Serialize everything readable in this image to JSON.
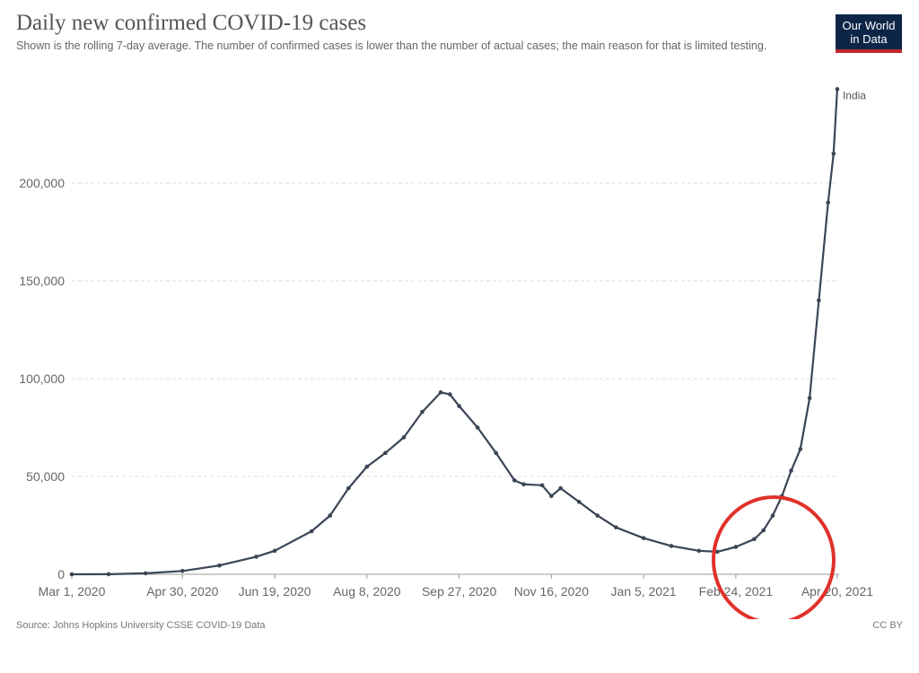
{
  "header": {
    "title": "Daily new confirmed COVID-19 cases",
    "subtitle": "Shown is the rolling 7-day average. The number of confirmed cases is lower than the number of actual cases; the main reason for that is limited testing.",
    "logo_line1": "Our World",
    "logo_line2": "in Data"
  },
  "footer": {
    "source": "Source: Johns Hopkins University CSSE COVID-19 Data",
    "license": "CC BY"
  },
  "colors": {
    "line": "#3a4556",
    "grid": "#dddddd",
    "highlight_circle": "#e0312a",
    "logo_bg": "#0d2648",
    "logo_bar": "#c0272d"
  },
  "chart_data": {
    "type": "line",
    "xlabel": "",
    "ylabel": "",
    "ylim": [
      0,
      250000
    ],
    "yticks": [
      0,
      50000,
      100000,
      150000,
      200000
    ],
    "ytick_labels": [
      "0",
      "50,000",
      "100,000",
      "150,000",
      "200,000"
    ],
    "xlim_days": [
      0,
      416
    ],
    "xtick_labels": [
      "Mar 1, 2020",
      "Apr 30, 2020",
      "Jun 19, 2020",
      "Aug 8, 2020",
      "Sep 27, 2020",
      "Nov 16, 2020",
      "Jan 5, 2021",
      "Feb 24, 2021",
      "Apr 20, 2021"
    ],
    "grid": "horizontal-dashed",
    "series": [
      {
        "name": "India",
        "points": [
          [
            "Mar 1, 2020",
            0
          ],
          [
            "Mar 21, 2020",
            30
          ],
          [
            "Apr 10, 2020",
            500
          ],
          [
            "Apr 30, 2020",
            1700
          ],
          [
            "May 20, 2020",
            4500
          ],
          [
            "Jun 9, 2020",
            9000
          ],
          [
            "Jun 19, 2020",
            12000
          ],
          [
            "Jul 9, 2020",
            22000
          ],
          [
            "Jul 19, 2020",
            30000
          ],
          [
            "Jul 29, 2020",
            44000
          ],
          [
            "Aug 8, 2020",
            55000
          ],
          [
            "Aug 18, 2020",
            62000
          ],
          [
            "Aug 28, 2020",
            70000
          ],
          [
            "Sep 7, 2020",
            83000
          ],
          [
            "Sep 17, 2020",
            93000
          ],
          [
            "Sep 22, 2020",
            92000
          ],
          [
            "Sep 27, 2020",
            86000
          ],
          [
            "Oct 7, 2020",
            75000
          ],
          [
            "Oct 17, 2020",
            62000
          ],
          [
            "Oct 27, 2020",
            48000
          ],
          [
            "Nov 1, 2020",
            46000
          ],
          [
            "Nov 11, 2020",
            45500
          ],
          [
            "Nov 16, 2020",
            40000
          ],
          [
            "Nov 21, 2020",
            44000
          ],
          [
            "Dec 1, 2020",
            37000
          ],
          [
            "Dec 11, 2020",
            30000
          ],
          [
            "Dec 21, 2020",
            24000
          ],
          [
            "Jan 5, 2021",
            18500
          ],
          [
            "Jan 20, 2021",
            14500
          ],
          [
            "Feb 4, 2021",
            12000
          ],
          [
            "Feb 14, 2021",
            11500
          ],
          [
            "Feb 24, 2021",
            14000
          ],
          [
            "Mar 6, 2021",
            18000
          ],
          [
            "Mar 11, 2021",
            22500
          ],
          [
            "Mar 16, 2021",
            30000
          ],
          [
            "Mar 21, 2021",
            40000
          ],
          [
            "Mar 26, 2021",
            53000
          ],
          [
            "Mar 31, 2021",
            64000
          ],
          [
            "Apr 5, 2021",
            90000
          ],
          [
            "Apr 10, 2021",
            140000
          ],
          [
            "Apr 15, 2021",
            190000
          ],
          [
            "Apr 18, 2021",
            215000
          ],
          [
            "Apr 20, 2021",
            248000
          ]
        ]
      }
    ]
  }
}
